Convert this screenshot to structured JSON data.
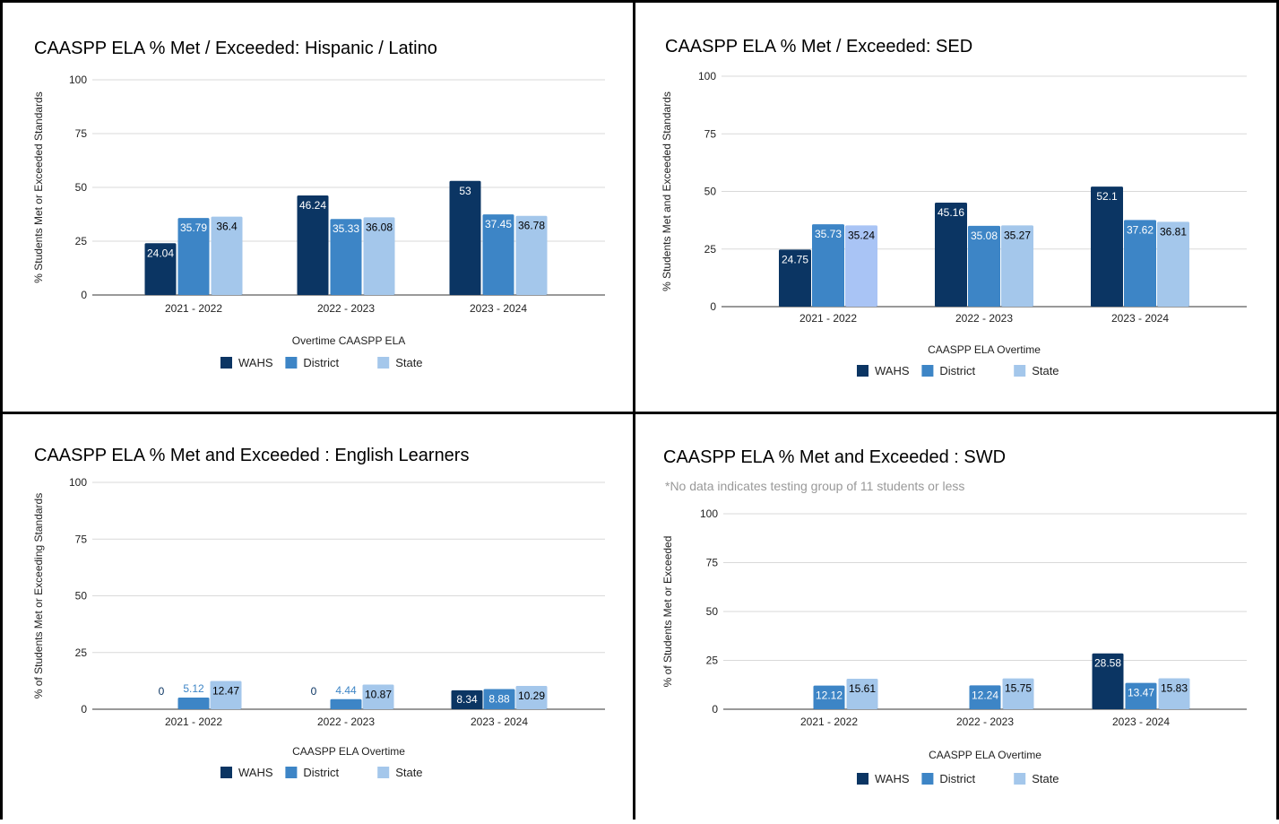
{
  "colors": {
    "wahs": "#0b3563",
    "district": "#3d85c6",
    "state": "#a4c7eb",
    "state_alt": "#a9c4f5",
    "grid": "#d9d9d9",
    "axis": "#333333"
  },
  "chart_data": [
    {
      "type": "bar",
      "title": "CAASPP ELA % Met / Exceeded:  Hispanic / Latino",
      "subtitle": "",
      "xlabel": "Overtime CAASPP ELA",
      "ylabel": "% Students Met or Exceeded Standards",
      "ylim": [
        0,
        100
      ],
      "yticks": [
        "0",
        "25",
        "50",
        "75",
        "100"
      ],
      "grid": true,
      "legend": "bottom",
      "categories": [
        "2021 - 2022",
        "2022 - 2023",
        "2023 - 2024"
      ],
      "series": [
        {
          "name": "WAHS",
          "values": [
            24.04,
            46.24,
            53
          ],
          "labels": [
            "24.04",
            "46.24",
            "53"
          ]
        },
        {
          "name": "District",
          "values": [
            35.79,
            35.33,
            37.45
          ],
          "labels": [
            "35.79",
            "35.33",
            "37.45"
          ]
        },
        {
          "name": "State",
          "values": [
            36.4,
            36.08,
            36.78
          ],
          "labels": [
            "36.4",
            "36.08",
            "36.78"
          ]
        }
      ]
    },
    {
      "type": "bar",
      "title": "CAASPP ELA % Met / Exceeded:  SED",
      "subtitle": "",
      "xlabel": "CAASPP ELA Overtime",
      "ylabel": "% Students Met and Exceeded Standards",
      "ylim": [
        0,
        100
      ],
      "yticks": [
        "0",
        "25",
        "50",
        "75",
        "100"
      ],
      "grid": true,
      "legend": "bottom",
      "categories": [
        "2021 - 2022",
        "2022 - 2023",
        "2023 - 2024"
      ],
      "series": [
        {
          "name": "WAHS",
          "values": [
            24.75,
            45.16,
            52.1
          ],
          "labels": [
            "24.75",
            "45.16",
            "52.1"
          ]
        },
        {
          "name": "District",
          "values": [
            35.73,
            35.08,
            37.62
          ],
          "labels": [
            "35.73",
            "35.08",
            "37.62"
          ]
        },
        {
          "name": "State",
          "values": [
            35.24,
            35.27,
            36.81
          ],
          "labels": [
            "35.24",
            "35.27",
            "36.81"
          ]
        }
      ]
    },
    {
      "type": "bar",
      "title": "CAASPP ELA % Met and Exceeded : English Learners",
      "subtitle": "",
      "xlabel": "CAASPP ELA Overtime",
      "ylabel": "% of Students Met or Exceeding Standards",
      "ylim": [
        0,
        100
      ],
      "yticks": [
        "0",
        "25",
        "50",
        "75",
        "100"
      ],
      "grid": true,
      "legend": "bottom",
      "categories": [
        "2021 - 2022",
        "2022 - 2023",
        "2023 - 2024"
      ],
      "series": [
        {
          "name": "WAHS",
          "values": [
            0,
            0,
            8.34
          ],
          "labels": [
            "0",
            "0",
            "8.34"
          ]
        },
        {
          "name": "District",
          "values": [
            5.12,
            4.44,
            8.88
          ],
          "labels": [
            "5.12",
            "4.44",
            "8.88"
          ]
        },
        {
          "name": "State",
          "values": [
            12.47,
            10.87,
            10.29
          ],
          "labels": [
            "12.47",
            "10.87",
            "10.29"
          ]
        }
      ]
    },
    {
      "type": "bar",
      "title": "CAASPP ELA % Met and Exceeded : SWD",
      "subtitle": "*No data indicates testing group of 11 students or less",
      "xlabel": "CAASPP ELA Overtime",
      "ylabel": "% of Students Met or Exceeded",
      "ylim": [
        0,
        100
      ],
      "yticks": [
        "0",
        "25",
        "50",
        "75",
        "100"
      ],
      "grid": true,
      "legend": "bottom",
      "categories": [
        "2021 - 2022",
        "2022 - 2023",
        "2023 - 2024"
      ],
      "series": [
        {
          "name": "WAHS",
          "values": [
            null,
            null,
            28.58
          ],
          "labels": [
            "",
            "",
            "28.58"
          ]
        },
        {
          "name": "District",
          "values": [
            12.12,
            12.24,
            13.47
          ],
          "labels": [
            "12.12",
            "12.24",
            "13.47"
          ]
        },
        {
          "name": "State",
          "values": [
            15.61,
            15.75,
            15.83
          ],
          "labels": [
            "15.61",
            "15.75",
            "15.83"
          ]
        }
      ]
    }
  ]
}
